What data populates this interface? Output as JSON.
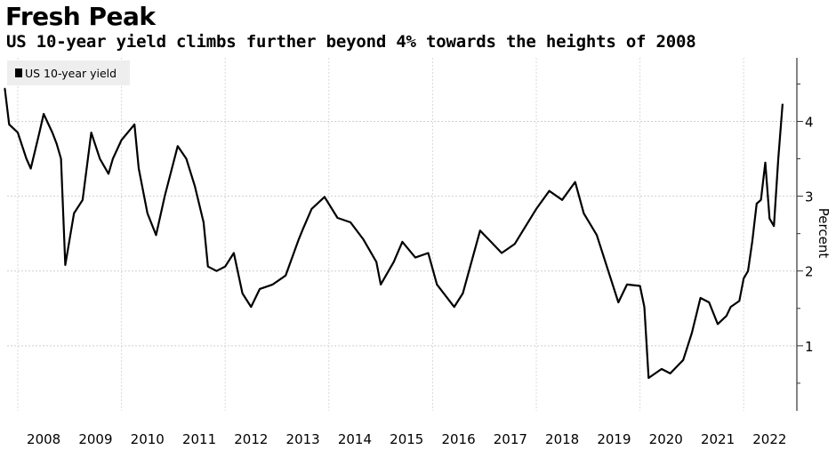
{
  "header": {
    "title": "Fresh Peak",
    "subtitle": "US 10-year yield climbs further beyond 4% towards the heights of 2008"
  },
  "chart_data": {
    "type": "line",
    "title": "Fresh Peak",
    "subtitle": "US 10-year yield climbs further beyond 4% towards the heights of 2008",
    "xlabel": "",
    "ylabel": "Percent",
    "ylim": [
      0.13,
      4.85
    ],
    "y_axis_position": "right",
    "y_ticks": [
      1,
      2,
      3,
      4
    ],
    "x_tick_labels": [
      "2008",
      "2009",
      "2010",
      "2011",
      "2012",
      "2013",
      "2014",
      "2015",
      "2016",
      "2017",
      "2018",
      "2019",
      "2020",
      "2021",
      "2022"
    ],
    "grid": true,
    "legend_position": "top-left",
    "series": [
      {
        "name": "US 10-year yield",
        "color": "#000000",
        "x": [
          "2007-10",
          "2007-11",
          "2008-01",
          "2008-03",
          "2008-04",
          "2008-06",
          "2008-07",
          "2008-09",
          "2008-10",
          "2008-11",
          "2008-12",
          "2009-02",
          "2009-04",
          "2009-06",
          "2009-08",
          "2009-10",
          "2009-11",
          "2010-01",
          "2010-04",
          "2010-05",
          "2010-07",
          "2010-09",
          "2010-11",
          "2011-02",
          "2011-04",
          "2011-06",
          "2011-08",
          "2011-09",
          "2011-11",
          "2012-01",
          "2012-03",
          "2012-05",
          "2012-07",
          "2012-09",
          "2012-12",
          "2013-03",
          "2013-06",
          "2013-07",
          "2013-09",
          "2013-12",
          "2014-03",
          "2014-06",
          "2014-09",
          "2014-12",
          "2015-01",
          "2015-04",
          "2015-06",
          "2015-09",
          "2015-12",
          "2016-02",
          "2016-06",
          "2016-08",
          "2016-12",
          "2017-02",
          "2017-05",
          "2017-08",
          "2018-01",
          "2018-04",
          "2018-07",
          "2018-10",
          "2018-12",
          "2019-03",
          "2019-06",
          "2019-08",
          "2019-10",
          "2020-01",
          "2020-02",
          "2020-03",
          "2020-06",
          "2020-08",
          "2020-11",
          "2021-01",
          "2021-03",
          "2021-05",
          "2021-07",
          "2021-09",
          "2021-10",
          "2021-12",
          "2022-01",
          "2022-02",
          "2022-03",
          "2022-04",
          "2022-05",
          "2022-06",
          "2022-07",
          "2022-08",
          "2022-09",
          "2022-10"
        ],
        "y": [
          4.44,
          3.96,
          3.85,
          3.5,
          3.37,
          3.85,
          4.1,
          3.85,
          3.7,
          3.5,
          2.08,
          2.77,
          2.95,
          3.85,
          3.5,
          3.3,
          3.5,
          3.75,
          3.96,
          3.37,
          2.77,
          2.48,
          3.0,
          3.67,
          3.5,
          3.13,
          2.65,
          2.06,
          2.0,
          2.06,
          2.24,
          1.7,
          1.52,
          1.76,
          1.82,
          1.94,
          2.42,
          2.56,
          2.83,
          2.99,
          2.71,
          2.65,
          2.42,
          2.12,
          1.82,
          2.12,
          2.39,
          2.18,
          2.24,
          1.82,
          1.52,
          1.7,
          2.54,
          2.42,
          2.24,
          2.36,
          2.83,
          3.07,
          2.95,
          3.19,
          2.77,
          2.48,
          1.94,
          1.58,
          1.82,
          1.8,
          1.52,
          0.57,
          0.69,
          0.63,
          0.81,
          1.17,
          1.64,
          1.58,
          1.29,
          1.4,
          1.52,
          1.6,
          1.9,
          2.0,
          2.4,
          2.9,
          2.95,
          3.45,
          2.7,
          2.6,
          3.5,
          4.23
        ]
      }
    ]
  }
}
